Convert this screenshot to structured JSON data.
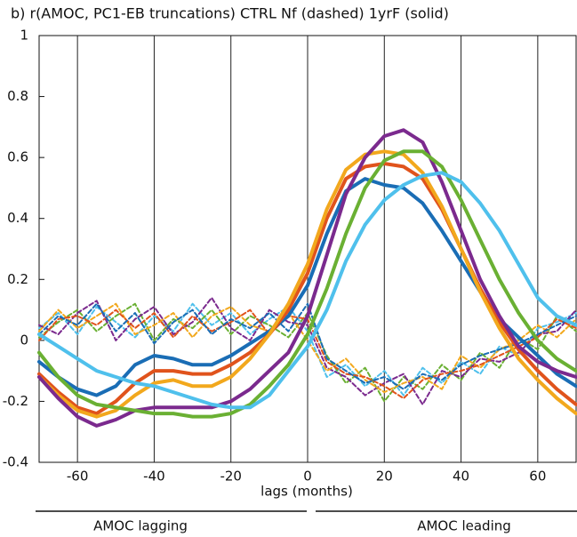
{
  "chart_data": {
    "type": "line",
    "title": "b) r(AMOC, PC1-EB truncations) CTRL Nf (dashed) 1yrF (solid)",
    "x_label": "lags (months)",
    "annotations": [
      "AMOC lagging",
      "AMOC leading"
    ],
    "x": [
      -70,
      -65,
      -60,
      -55,
      -50,
      -45,
      -40,
      -35,
      -30,
      -25,
      -20,
      -15,
      -10,
      -5,
      0,
      5,
      10,
      15,
      20,
      25,
      30,
      35,
      40,
      45,
      50,
      55,
      60,
      65,
      70
    ],
    "xlim": [
      -70,
      70
    ],
    "xticks": [
      -60,
      -40,
      -20,
      0,
      20,
      40,
      60
    ],
    "ylim": [
      -0.4,
      1
    ],
    "yticks": [
      -0.4,
      -0.2,
      0,
      0.2,
      0.4,
      0.6,
      0.8,
      1
    ],
    "grid": true,
    "series": [
      {
        "color": "#4fc0ec",
        "dashed": true,
        "values": [
          0.04,
          0.09,
          0.02,
          0.11,
          0.06,
          0.01,
          0.08,
          0.03,
          0.12,
          0.05,
          0.09,
          0.02,
          0.07,
          0.11,
          0.03,
          -0.12,
          -0.08,
          -0.15,
          -0.1,
          -0.18,
          -0.09,
          -0.14,
          -0.07,
          -0.11,
          -0.02,
          -0.05,
          0.04,
          0.06,
          0.09
        ]
      },
      {
        "color": "#6ab033",
        "dashed": true,
        "values": [
          0.01,
          0.06,
          0.1,
          0.03,
          0.08,
          0.12,
          0.0,
          0.07,
          0.04,
          0.1,
          0.02,
          0.08,
          0.05,
          0.01,
          0.09,
          -0.05,
          -0.14,
          -0.09,
          -0.2,
          -0.12,
          -0.16,
          -0.08,
          -0.13,
          -0.04,
          -0.09,
          0.01,
          -0.03,
          0.08,
          0.03
        ]
      },
      {
        "color": "#7b2a8e",
        "dashed": true,
        "values": [
          0.05,
          0.02,
          0.09,
          0.13,
          0.0,
          0.07,
          0.11,
          0.02,
          0.06,
          0.14,
          0.04,
          0.0,
          0.1,
          0.06,
          0.05,
          -0.09,
          -0.12,
          -0.18,
          -0.14,
          -0.11,
          -0.21,
          -0.1,
          -0.12,
          -0.06,
          -0.07,
          -0.04,
          0.02,
          0.03,
          0.1
        ]
      },
      {
        "color": "#f2a81d",
        "dashed": true,
        "values": [
          0.03,
          0.1,
          0.04,
          0.08,
          0.12,
          0.02,
          0.05,
          0.09,
          0.01,
          0.08,
          0.11,
          0.05,
          0.03,
          0.09,
          0.0,
          -0.1,
          -0.06,
          -0.13,
          -0.17,
          -0.14,
          -0.12,
          -0.16,
          -0.05,
          -0.09,
          -0.03,
          0.0,
          0.05,
          0.01,
          0.07
        ]
      },
      {
        "color": "#e0531c",
        "dashed": true,
        "values": [
          0.0,
          0.07,
          0.08,
          0.05,
          0.1,
          0.04,
          0.09,
          0.01,
          0.08,
          0.03,
          0.06,
          0.1,
          0.02,
          0.08,
          0.07,
          -0.07,
          -0.11,
          -0.12,
          -0.15,
          -0.19,
          -0.13,
          -0.11,
          -0.1,
          -0.08,
          -0.05,
          -0.02,
          0.01,
          0.07,
          0.04
        ]
      },
      {
        "color": "#1a6db5",
        "dashed": true,
        "values": [
          0.02,
          0.08,
          0.05,
          0.12,
          0.03,
          0.09,
          -0.01,
          0.06,
          0.1,
          0.02,
          0.07,
          0.04,
          0.09,
          0.03,
          0.12,
          -0.06,
          -0.1,
          -0.14,
          -0.12,
          -0.16,
          -0.11,
          -0.13,
          -0.08,
          -0.05,
          -0.03,
          -0.01,
          0.02,
          0.05,
          0.08
        ]
      },
      {
        "color": "#1a6db5",
        "dashed": false,
        "values": [
          -0.07,
          -0.12,
          -0.16,
          -0.18,
          -0.15,
          -0.08,
          -0.05,
          -0.06,
          -0.08,
          -0.08,
          -0.05,
          -0.01,
          0.03,
          0.08,
          0.18,
          0.35,
          0.49,
          0.53,
          0.51,
          0.5,
          0.45,
          0.36,
          0.26,
          0.16,
          0.07,
          0.01,
          -0.05,
          -0.11,
          -0.15
        ]
      },
      {
        "color": "#e0531c",
        "dashed": false,
        "values": [
          -0.11,
          -0.17,
          -0.22,
          -0.24,
          -0.2,
          -0.14,
          -0.1,
          -0.1,
          -0.11,
          -0.11,
          -0.08,
          -0.04,
          0.02,
          0.1,
          0.22,
          0.4,
          0.53,
          0.57,
          0.58,
          0.57,
          0.53,
          0.43,
          0.3,
          0.17,
          0.06,
          -0.03,
          -0.1,
          -0.16,
          -0.21
        ]
      },
      {
        "color": "#f2a81d",
        "dashed": false,
        "values": [
          -0.12,
          -0.18,
          -0.23,
          -0.25,
          -0.23,
          -0.18,
          -0.14,
          -0.13,
          -0.15,
          -0.15,
          -0.12,
          -0.06,
          0.02,
          0.12,
          0.25,
          0.43,
          0.56,
          0.61,
          0.62,
          0.61,
          0.55,
          0.44,
          0.3,
          0.16,
          0.04,
          -0.06,
          -0.13,
          -0.19,
          -0.24
        ]
      },
      {
        "color": "#7b2a8e",
        "dashed": false,
        "values": [
          -0.12,
          -0.19,
          -0.25,
          -0.28,
          -0.26,
          -0.23,
          -0.22,
          -0.22,
          -0.22,
          -0.22,
          -0.2,
          -0.16,
          -0.1,
          -0.04,
          0.08,
          0.28,
          0.48,
          0.6,
          0.67,
          0.69,
          0.65,
          0.52,
          0.36,
          0.2,
          0.08,
          -0.02,
          -0.07,
          -0.1,
          -0.12
        ]
      },
      {
        "color": "#6ab033",
        "dashed": false,
        "values": [
          -0.04,
          -0.12,
          -0.18,
          -0.21,
          -0.22,
          -0.23,
          -0.24,
          -0.24,
          -0.25,
          -0.25,
          -0.24,
          -0.21,
          -0.15,
          -0.08,
          0.02,
          0.17,
          0.35,
          0.5,
          0.59,
          0.62,
          0.62,
          0.57,
          0.46,
          0.33,
          0.2,
          0.09,
          0.0,
          -0.06,
          -0.1
        ]
      },
      {
        "color": "#4fc0ec",
        "dashed": false,
        "values": [
          0.02,
          -0.02,
          -0.06,
          -0.1,
          -0.12,
          -0.14,
          -0.15,
          -0.17,
          -0.19,
          -0.21,
          -0.22,
          -0.22,
          -0.18,
          -0.1,
          -0.02,
          0.1,
          0.26,
          0.38,
          0.46,
          0.51,
          0.54,
          0.55,
          0.52,
          0.45,
          0.36,
          0.25,
          0.14,
          0.08,
          0.05
        ]
      }
    ]
  }
}
